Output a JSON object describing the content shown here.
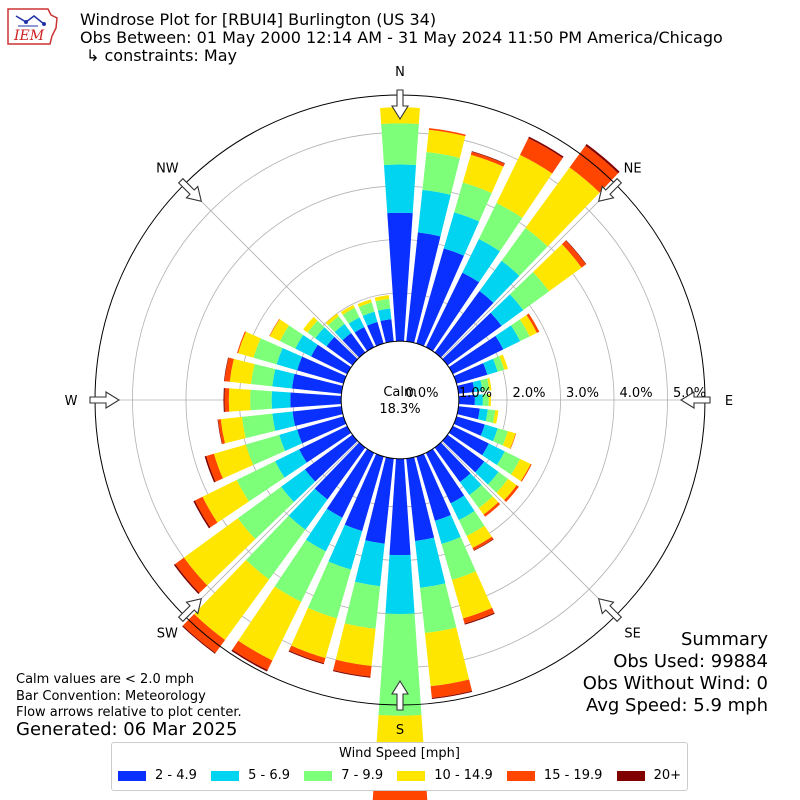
{
  "header": {
    "logo_text": "IEM",
    "title": "Windrose Plot for [RBUI4] Burlington (US 34)",
    "subtitle": "Obs Between: 01 May 2000 12:14 AM - 31 May 2024 11:50 PM America/Chicago",
    "constraints": "↳ constraints: May"
  },
  "footer": {
    "calm_note": "Calm values are < 2.0 mph",
    "bar_convention": "Bar Convention: Meteorology",
    "flow_note": "Flow arrows relative to plot center.",
    "generated": "Generated: 06 Mar 2025"
  },
  "summary": {
    "title": "Summary",
    "obs_used": "Obs Used: 99884",
    "obs_without_wind": "Obs Without Wind: 0",
    "avg_speed": "Avg Speed: 5.9 mph"
  },
  "legend": {
    "title": "Wind Speed [mph]",
    "items": [
      {
        "label": "2 - 4.9",
        "color": "#0a30ff"
      },
      {
        "label": "5 - 6.9",
        "color": "#00d4f0"
      },
      {
        "label": "7 - 9.9",
        "color": "#7dff7a"
      },
      {
        "label": "10 - 14.9",
        "color": "#ffe600"
      },
      {
        "label": "15 - 19.9",
        "color": "#ff4500"
      },
      {
        "label": "20+",
        "color": "#800000"
      }
    ]
  },
  "colors": {
    "grid": "#b0b0b0",
    "axis": "#000000",
    "arrow_fill": "#ffffff",
    "arrow_edge": "#333333"
  },
  "chart_data": {
    "type": "windrose",
    "calm_label": "Calm",
    "calm_value": "18.3%",
    "compass_labels": [
      "N",
      "NE",
      "E",
      "SE",
      "S",
      "SW",
      "W",
      "NW"
    ],
    "compass_angles_deg": [
      0,
      45,
      90,
      135,
      180,
      225,
      270,
      315
    ],
    "radial_ticks": [
      0,
      1,
      2,
      3,
      4,
      5
    ],
    "radial_tick_labels": [
      "0.0%",
      "1.0%",
      "2.0%",
      "3.0%",
      "4.0%",
      "5.0%"
    ],
    "radial_max": 5.7,
    "calm_radius": 1.1,
    "bin_width_deg": 10,
    "direction_bins_deg": [
      0,
      10,
      20,
      30,
      40,
      50,
      60,
      70,
      80,
      90,
      100,
      110,
      120,
      130,
      140,
      150,
      160,
      170,
      180,
      190,
      200,
      210,
      220,
      230,
      240,
      250,
      260,
      270,
      280,
      290,
      300,
      310,
      320,
      330,
      340,
      350
    ],
    "speed_bins": [
      "2 - 4.9",
      "5 - 6.9",
      "7 - 9.9",
      "10 - 14.9",
      "15 - 19.9",
      "20+"
    ],
    "cumulative_percent_by_direction": [
      [
        2.4,
        3.3,
        4.07,
        4.37,
        4.37,
        4.37
      ],
      [
        2.05,
        2.85,
        3.56,
        3.98,
        4.01,
        4.01
      ],
      [
        1.85,
        2.55,
        3.13,
        3.67,
        3.73,
        3.74
      ],
      [
        1.55,
        2.25,
        3.0,
        4.0,
        4.35,
        4.38
      ],
      [
        1.42,
        2.12,
        2.88,
        4.28,
        4.78,
        4.82
      ],
      [
        1.25,
        1.75,
        2.35,
        3.1,
        3.2,
        3.21
      ],
      [
        1.05,
        1.4,
        1.6,
        1.75,
        1.8,
        1.8
      ],
      [
        0.6,
        0.8,
        0.93,
        1.0,
        1.0,
        1.0
      ],
      [
        0.3,
        0.45,
        0.58,
        0.62,
        0.62,
        0.62
      ],
      [
        0.3,
        0.45,
        0.56,
        0.6,
        0.6,
        0.6
      ],
      [
        0.4,
        0.55,
        0.69,
        0.75,
        0.75,
        0.75
      ],
      [
        0.55,
        0.8,
        1.0,
        1.15,
        1.16,
        1.16
      ],
      [
        0.75,
        1.08,
        1.4,
        1.62,
        1.64,
        1.64
      ],
      [
        0.85,
        1.18,
        1.4,
        1.6,
        1.65,
        1.65
      ],
      [
        0.8,
        1.1,
        1.4,
        1.55,
        1.6,
        1.6
      ],
      [
        1.05,
        1.4,
        1.73,
        1.98,
        2.03,
        2.04
      ],
      [
        1.25,
        1.7,
        2.4,
        3.15,
        3.25,
        3.27
      ],
      [
        1.55,
        2.43,
        3.28,
        4.28,
        4.5,
        4.52
      ],
      [
        1.8,
        2.9,
        4.8,
        6.15,
        6.45,
        6.48
      ],
      [
        1.6,
        2.4,
        3.2,
        3.9,
        4.1,
        4.12
      ],
      [
        1.45,
        2.2,
        3.15,
        3.92,
        4.02,
        4.04
      ],
      [
        1.35,
        2.05,
        3.1,
        4.32,
        4.52,
        4.55
      ],
      [
        1.2,
        1.9,
        3.05,
        4.45,
        4.75,
        4.77
      ],
      [
        1.1,
        1.65,
        2.65,
        3.9,
        4.1,
        4.13
      ],
      [
        1.0,
        1.5,
        2.3,
        3.01,
        3.17,
        3.2
      ],
      [
        0.9,
        1.25,
        1.9,
        2.52,
        2.67,
        2.7
      ],
      [
        0.92,
        1.3,
        1.87,
        2.27,
        2.32,
        2.33
      ],
      [
        0.95,
        1.3,
        1.7,
        2.1,
        2.18,
        2.2
      ],
      [
        0.93,
        1.3,
        1.7,
        2.1,
        2.2,
        2.21
      ],
      [
        0.9,
        1.3,
        1.75,
        2.05,
        2.07,
        2.07
      ],
      [
        0.75,
        1.08,
        1.4,
        1.61,
        1.62,
        1.62
      ],
      [
        0.6,
        0.86,
        1.04,
        1.14,
        1.14,
        1.14
      ],
      [
        0.45,
        0.66,
        0.84,
        0.9,
        0.9,
        0.9
      ],
      [
        0.42,
        0.62,
        0.82,
        0.88,
        0.88,
        0.88
      ],
      [
        0.42,
        0.62,
        0.8,
        0.86,
        0.86,
        0.86
      ],
      [
        0.42,
        0.62,
        0.8,
        0.87,
        0.87,
        0.87
      ]
    ]
  }
}
